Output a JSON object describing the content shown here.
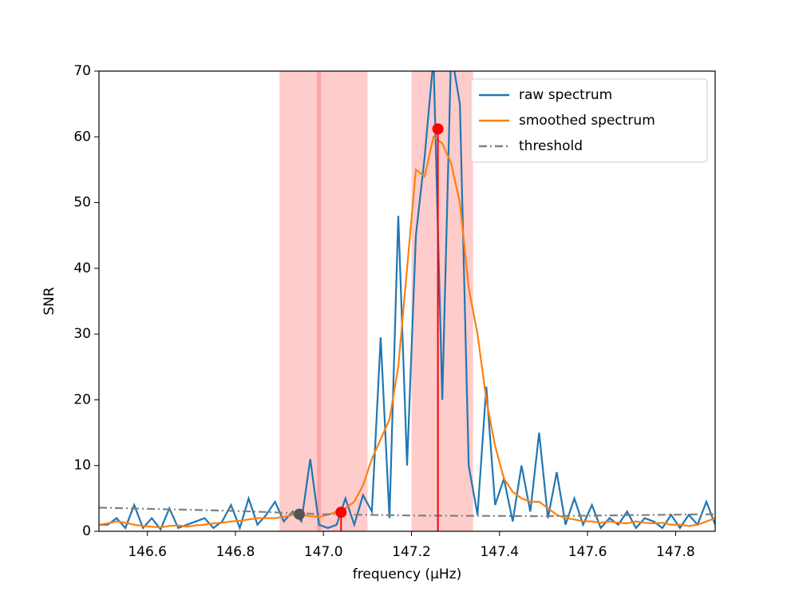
{
  "chart_data": {
    "type": "line",
    "xlabel": "frequency (μHz)",
    "ylabel": "SNR",
    "xlim": [
      146.49,
      147.89
    ],
    "ylim": [
      0,
      70
    ],
    "xticks": [
      146.6,
      146.8,
      {
        "value": 147,
        "label": "147.0"
      },
      147.2,
      147.4,
      147.6,
      147.8
    ],
    "yticks": [
      0,
      10,
      20,
      30,
      40,
      50,
      60,
      70
    ],
    "legend": "upper right",
    "x": [
      146.49,
      146.51,
      146.53,
      146.55,
      146.57,
      146.59,
      146.61,
      146.63,
      146.65,
      146.67,
      146.69,
      146.71,
      146.73,
      146.75,
      146.77,
      146.79,
      146.81,
      146.83,
      146.85,
      146.87,
      146.89,
      146.91,
      146.93,
      146.95,
      146.97,
      146.99,
      147.01,
      147.03,
      147.05,
      147.07,
      147.09,
      147.11,
      147.13,
      147.15,
      147.17,
      147.19,
      147.21,
      147.23,
      147.25,
      147.27,
      147.29,
      147.31,
      147.33,
      147.35,
      147.37,
      147.39,
      147.41,
      147.43,
      147.45,
      147.47,
      147.49,
      147.51,
      147.53,
      147.55,
      147.57,
      147.59,
      147.61,
      147.63,
      147.65,
      147.67,
      147.69,
      147.71,
      147.73,
      147.75,
      147.77,
      147.79,
      147.81,
      147.83,
      147.85,
      147.87,
      147.89
    ],
    "series": [
      {
        "name": "raw spectrum",
        "color": "#1f77b4",
        "style": "solid",
        "values": [
          1,
          1,
          2,
          0.5,
          4,
          0.5,
          2,
          0.3,
          3.5,
          0.5,
          1,
          1.5,
          2,
          0.5,
          1.5,
          4,
          0.5,
          5,
          1,
          2.5,
          4.5,
          1.5,
          3,
          1.5,
          11,
          1,
          0.5,
          1,
          5,
          1,
          5.5,
          3,
          29.5,
          2,
          48,
          10,
          45,
          57,
          72,
          20,
          73,
          65,
          10,
          2.5,
          22,
          4,
          8,
          1.5,
          10,
          3,
          15,
          2,
          9,
          1,
          5,
          1,
          4,
          0.5,
          2,
          1,
          3,
          0.5,
          2,
          1.5,
          0.5,
          2.5,
          0.5,
          2.5,
          1,
          4.5,
          1
        ]
      },
      {
        "name": "smoothed spectrum",
        "color": "#ff7f0e",
        "style": "solid",
        "values": [
          1,
          1.2,
          1.5,
          1.3,
          1,
          0.8,
          0.7,
          0.6,
          0.8,
          0.9,
          0.7,
          0.9,
          1,
          1.2,
          1.3,
          1.5,
          1.6,
          1.8,
          2,
          2,
          2,
          2.2,
          2.5,
          2.5,
          2.3,
          2.2,
          2.5,
          3,
          3.5,
          4.5,
          7,
          11,
          14,
          17,
          25,
          40,
          55,
          54,
          60,
          59,
          56,
          50,
          37,
          30,
          20,
          13,
          8,
          6,
          5,
          4.5,
          4.5,
          3.5,
          2.5,
          2,
          1.8,
          1.5,
          1.5,
          1.3,
          1.5,
          1.3,
          1.2,
          1.5,
          1.3,
          1.2,
          1.3,
          1,
          1,
          0.8,
          1,
          1.5,
          2
        ]
      },
      {
        "name": "threshold",
        "color": "#808080",
        "style": "dashdot",
        "x": [
          146.49,
          146.8,
          147.0,
          147.2,
          147.5,
          147.89
        ],
        "values": [
          3.6,
          3.1,
          2.6,
          2.4,
          2.3,
          2.6
        ]
      }
    ],
    "spans": [
      {
        "x": [
          146.9,
          147.1
        ],
        "color": "#ff0000"
      },
      {
        "x": [
          147.2,
          147.34
        ],
        "color": "#ff0000"
      }
    ],
    "span_lines": [
      146.99
    ],
    "markers": [
      {
        "x": 147.26,
        "y": 61.2,
        "color": "#ff0000",
        "stem": true
      },
      {
        "x": 147.04,
        "y": 2.9,
        "color": "#ff0000",
        "stem": true
      },
      {
        "x": 146.945,
        "y": 2.6,
        "color": "#555555",
        "stem": false
      }
    ]
  }
}
